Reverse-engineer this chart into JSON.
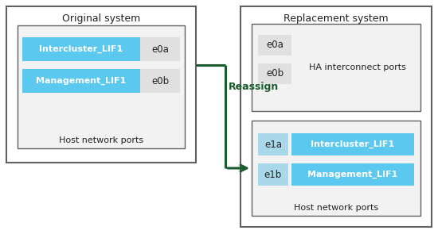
{
  "bg_color": "#ffffff",
  "border_color": "#606060",
  "box_fill": "#f2f2f2",
  "port_fill": "#e0e0e0",
  "lif_blue": "#5bc8f0",
  "lif_blue_light": "#a8d8ea",
  "arrow_color": "#1a5c2e",
  "label_color": "#1a5c2e",
  "text_dark": "#222222",
  "orig_title": "Original system",
  "repl_title": "Replacement system",
  "reassign_text": "Reassign",
  "orig_inner_label": "Host network ports",
  "repl_top_inner_label": "HA interconnect ports",
  "repl_bot_inner_label": "Host network ports",
  "intercluster": "Intercluster_LIF1",
  "management": "Management_LIF1",
  "e0a": "e0a",
  "e0b": "e0b",
  "e1a": "e1a",
  "e1b": "e1b",
  "fig_w": 5.5,
  "fig_h": 2.95,
  "dpi": 100
}
